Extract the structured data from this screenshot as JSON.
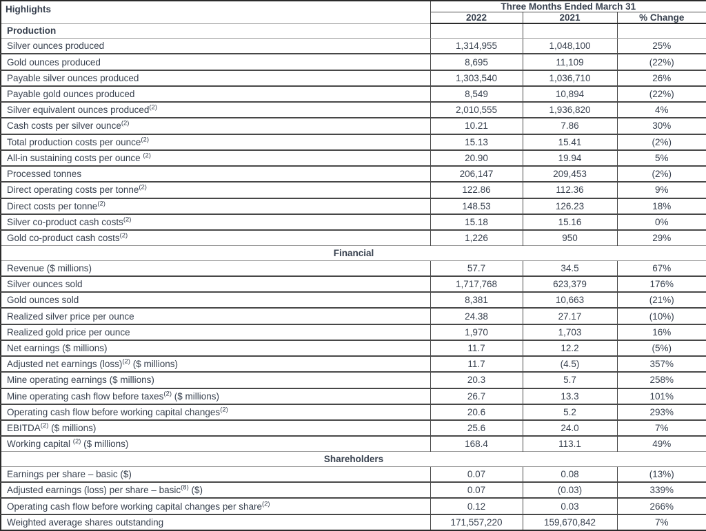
{
  "colors": {
    "text": "#37404e",
    "border_dark": "#474747",
    "border_light": "#9a9a9a",
    "frame": "#2b2b2b"
  },
  "table": {
    "corner_label": "Highlights",
    "period_title": "Three Months Ended March 31",
    "columns": [
      "2022",
      "2021",
      "% Change"
    ],
    "sections": [
      {
        "label": "Production",
        "style": "grid",
        "rows": [
          {
            "pre": "Silver ounces produced",
            "sup": "",
            "post": "",
            "v2022": "1,314,955",
            "v2021": "1,048,100",
            "change": "25%"
          },
          {
            "pre": "Gold ounces produced",
            "sup": "",
            "post": "",
            "v2022": "8,695",
            "v2021": "11,109",
            "change": "(22%)"
          },
          {
            "pre": "Payable silver ounces produced",
            "sup": "",
            "post": "",
            "v2022": "1,303,540",
            "v2021": "1,036,710",
            "change": "26%"
          },
          {
            "pre": "Payable gold ounces produced",
            "sup": "",
            "post": "",
            "v2022": "8,549",
            "v2021": "10,894",
            "change": "(22%)"
          },
          {
            "pre": "Silver equivalent ounces produced",
            "sup": "(2)",
            "post": "",
            "v2022": "2,010,555",
            "v2021": "1,936,820",
            "change": "4%"
          },
          {
            "pre": "Cash costs per silver ounce",
            "sup": "(2)",
            "post": "",
            "v2022": "10.21",
            "v2021": "7.86",
            "change": "30%"
          },
          {
            "pre": "Total production costs per ounce",
            "sup": "(2)",
            "post": "",
            "v2022": "15.13",
            "v2021": "15.41",
            "change": "(2%)"
          },
          {
            "pre": "All-in sustaining costs per ounce ",
            "sup": "(2)",
            "post": "",
            "v2022": "20.90",
            "v2021": "19.94",
            "change": "5%"
          },
          {
            "pre": "Processed tonnes",
            "sup": "",
            "post": "",
            "v2022": "206,147",
            "v2021": "209,453",
            "change": "(2%)"
          },
          {
            "pre": "Direct operating costs per tonne",
            "sup": "(2)",
            "post": "",
            "v2022": "122.86",
            "v2021": "112.36",
            "change": "9%"
          },
          {
            "pre": "Direct costs per tonne",
            "sup": "(2)",
            "post": "",
            "v2022": "148.53",
            "v2021": "126.23",
            "change": "18%"
          },
          {
            "pre": "Silver co-product cash costs",
            "sup": "(2)",
            "post": "",
            "v2022": "15.18",
            "v2021": "15.16",
            "change": "0%"
          },
          {
            "pre": "Gold co-product cash costs",
            "sup": "(2)",
            "post": "",
            "v2022": "1,226",
            "v2021": "950",
            "change": "29%"
          }
        ]
      },
      {
        "label": "Financial",
        "style": "center",
        "rows": [
          {
            "pre": "Revenue ($ millions)",
            "sup": "",
            "post": "",
            "v2022": "57.7",
            "v2021": "34.5",
            "change": "67%"
          },
          {
            "pre": "Silver ounces sold",
            "sup": "",
            "post": "",
            "v2022": "1,717,768",
            "v2021": "623,379",
            "change": "176%"
          },
          {
            "pre": "Gold ounces sold",
            "sup": "",
            "post": "",
            "v2022": "8,381",
            "v2021": "10,663",
            "change": "(21%)"
          },
          {
            "pre": "Realized silver price per ounce",
            "sup": "",
            "post": "",
            "v2022": "24.38",
            "v2021": "27.17",
            "change": "(10%)"
          },
          {
            "pre": "Realized gold price per ounce",
            "sup": "",
            "post": "",
            "v2022": "1,970",
            "v2021": "1,703",
            "change": "16%"
          },
          {
            "pre": "Net earnings ($ millions)",
            "sup": "",
            "post": "",
            "v2022": "11.7",
            "v2021": "12.2",
            "change": "(5%)"
          },
          {
            "pre": "Adjusted net earnings (loss)",
            "sup": "(2)",
            "post": " ($ millions)",
            "v2022": "11.7",
            "v2021": "(4.5)",
            "change": "357%"
          },
          {
            "pre": "Mine operating earnings ($ millions)",
            "sup": "",
            "post": "",
            "v2022": "20.3",
            "v2021": "5.7",
            "change": "258%"
          },
          {
            "pre": "Mine operating cash flow before taxes",
            "sup": "(2)",
            "post": " ($ millions)",
            "v2022": "26.7",
            "v2021": "13.3",
            "change": "101%"
          },
          {
            "pre": "Operating cash flow before working capital changes",
            "sup": "(2)",
            "post": "",
            "v2022": "20.6",
            "v2021": "5.2",
            "change": "293%"
          },
          {
            "pre": "EBITDA",
            "sup": "(2)",
            "post": " ($ millions)",
            "v2022": "25.6",
            "v2021": "24.0",
            "change": "7%"
          },
          {
            "pre": "Working capital ",
            "sup": "(2)",
            "post": " ($ millions)",
            "v2022": "168.4",
            "v2021": "113.1",
            "change": "49%"
          }
        ]
      },
      {
        "label": "Shareholders",
        "style": "center",
        "rows": [
          {
            "pre": "Earnings per share – basic ($)",
            "sup": "",
            "post": "",
            "v2022": "0.07",
            "v2021": "0.08",
            "change": "(13%)"
          },
          {
            "pre": "Adjusted earnings (loss) per share – basic",
            "sup": "(8)",
            "post": " ($)",
            "v2022": "0.07",
            "v2021": "(0.03)",
            "change": "339%"
          },
          {
            "pre": "Operating cash flow before working capital changes per share",
            "sup": "(2)",
            "post": "",
            "v2022": "0.12",
            "v2021": "0.03",
            "change": "266%"
          },
          {
            "pre": "Weighted average shares outstanding",
            "sup": "",
            "post": "",
            "v2022": "171,557,220",
            "v2021": "159,670,842",
            "change": "7%"
          }
        ]
      }
    ]
  }
}
